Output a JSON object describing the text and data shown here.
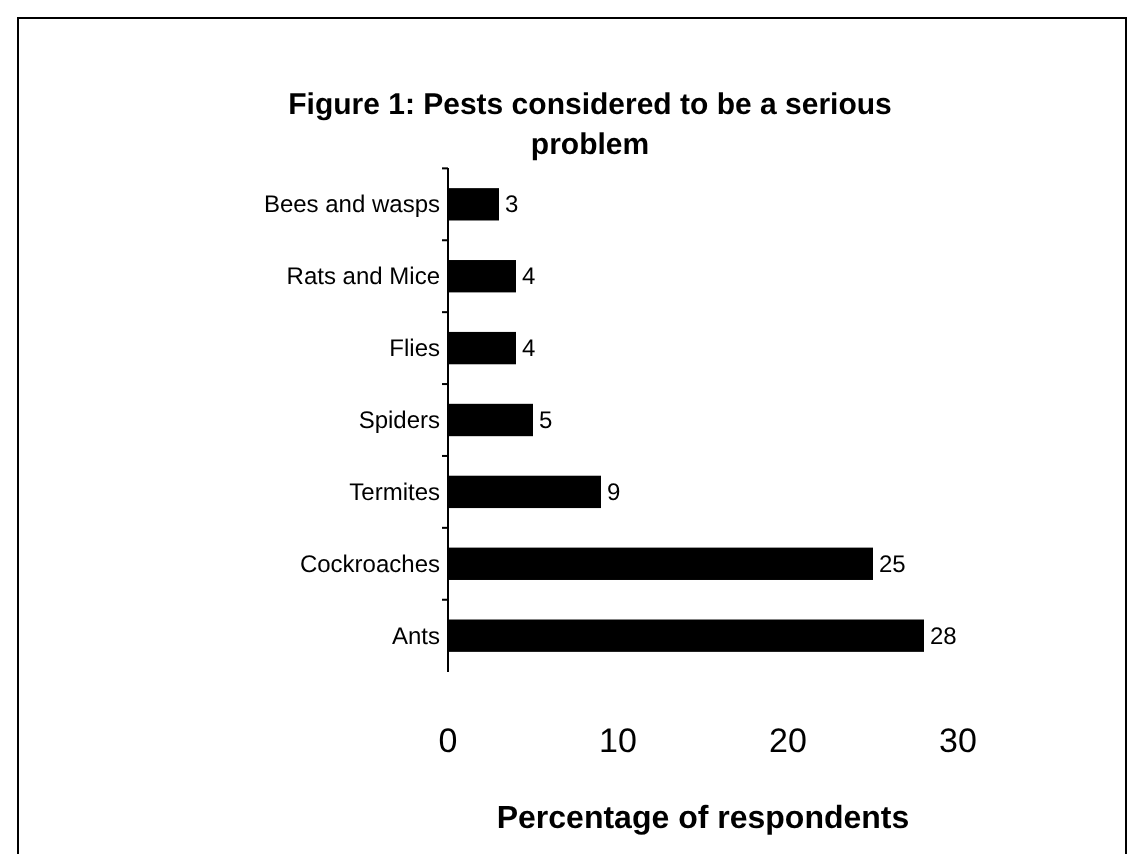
{
  "chart_data": {
    "type": "bar",
    "orientation": "horizontal",
    "title": "Figure 1: Pests considered to be a serious problem",
    "xlabel": "Percentage of respondents",
    "categories": [
      "Bees and wasps",
      "Rats and Mice",
      "Flies",
      "Spiders",
      "Termites",
      "Cockroaches",
      "Ants"
    ],
    "values": [
      3,
      4,
      4,
      5,
      9,
      25,
      28
    ],
    "color": "#000000",
    "xlim": [
      0,
      30
    ],
    "xticks": [
      0,
      10,
      20,
      30
    ],
    "data_labels": true,
    "grid": false
  }
}
